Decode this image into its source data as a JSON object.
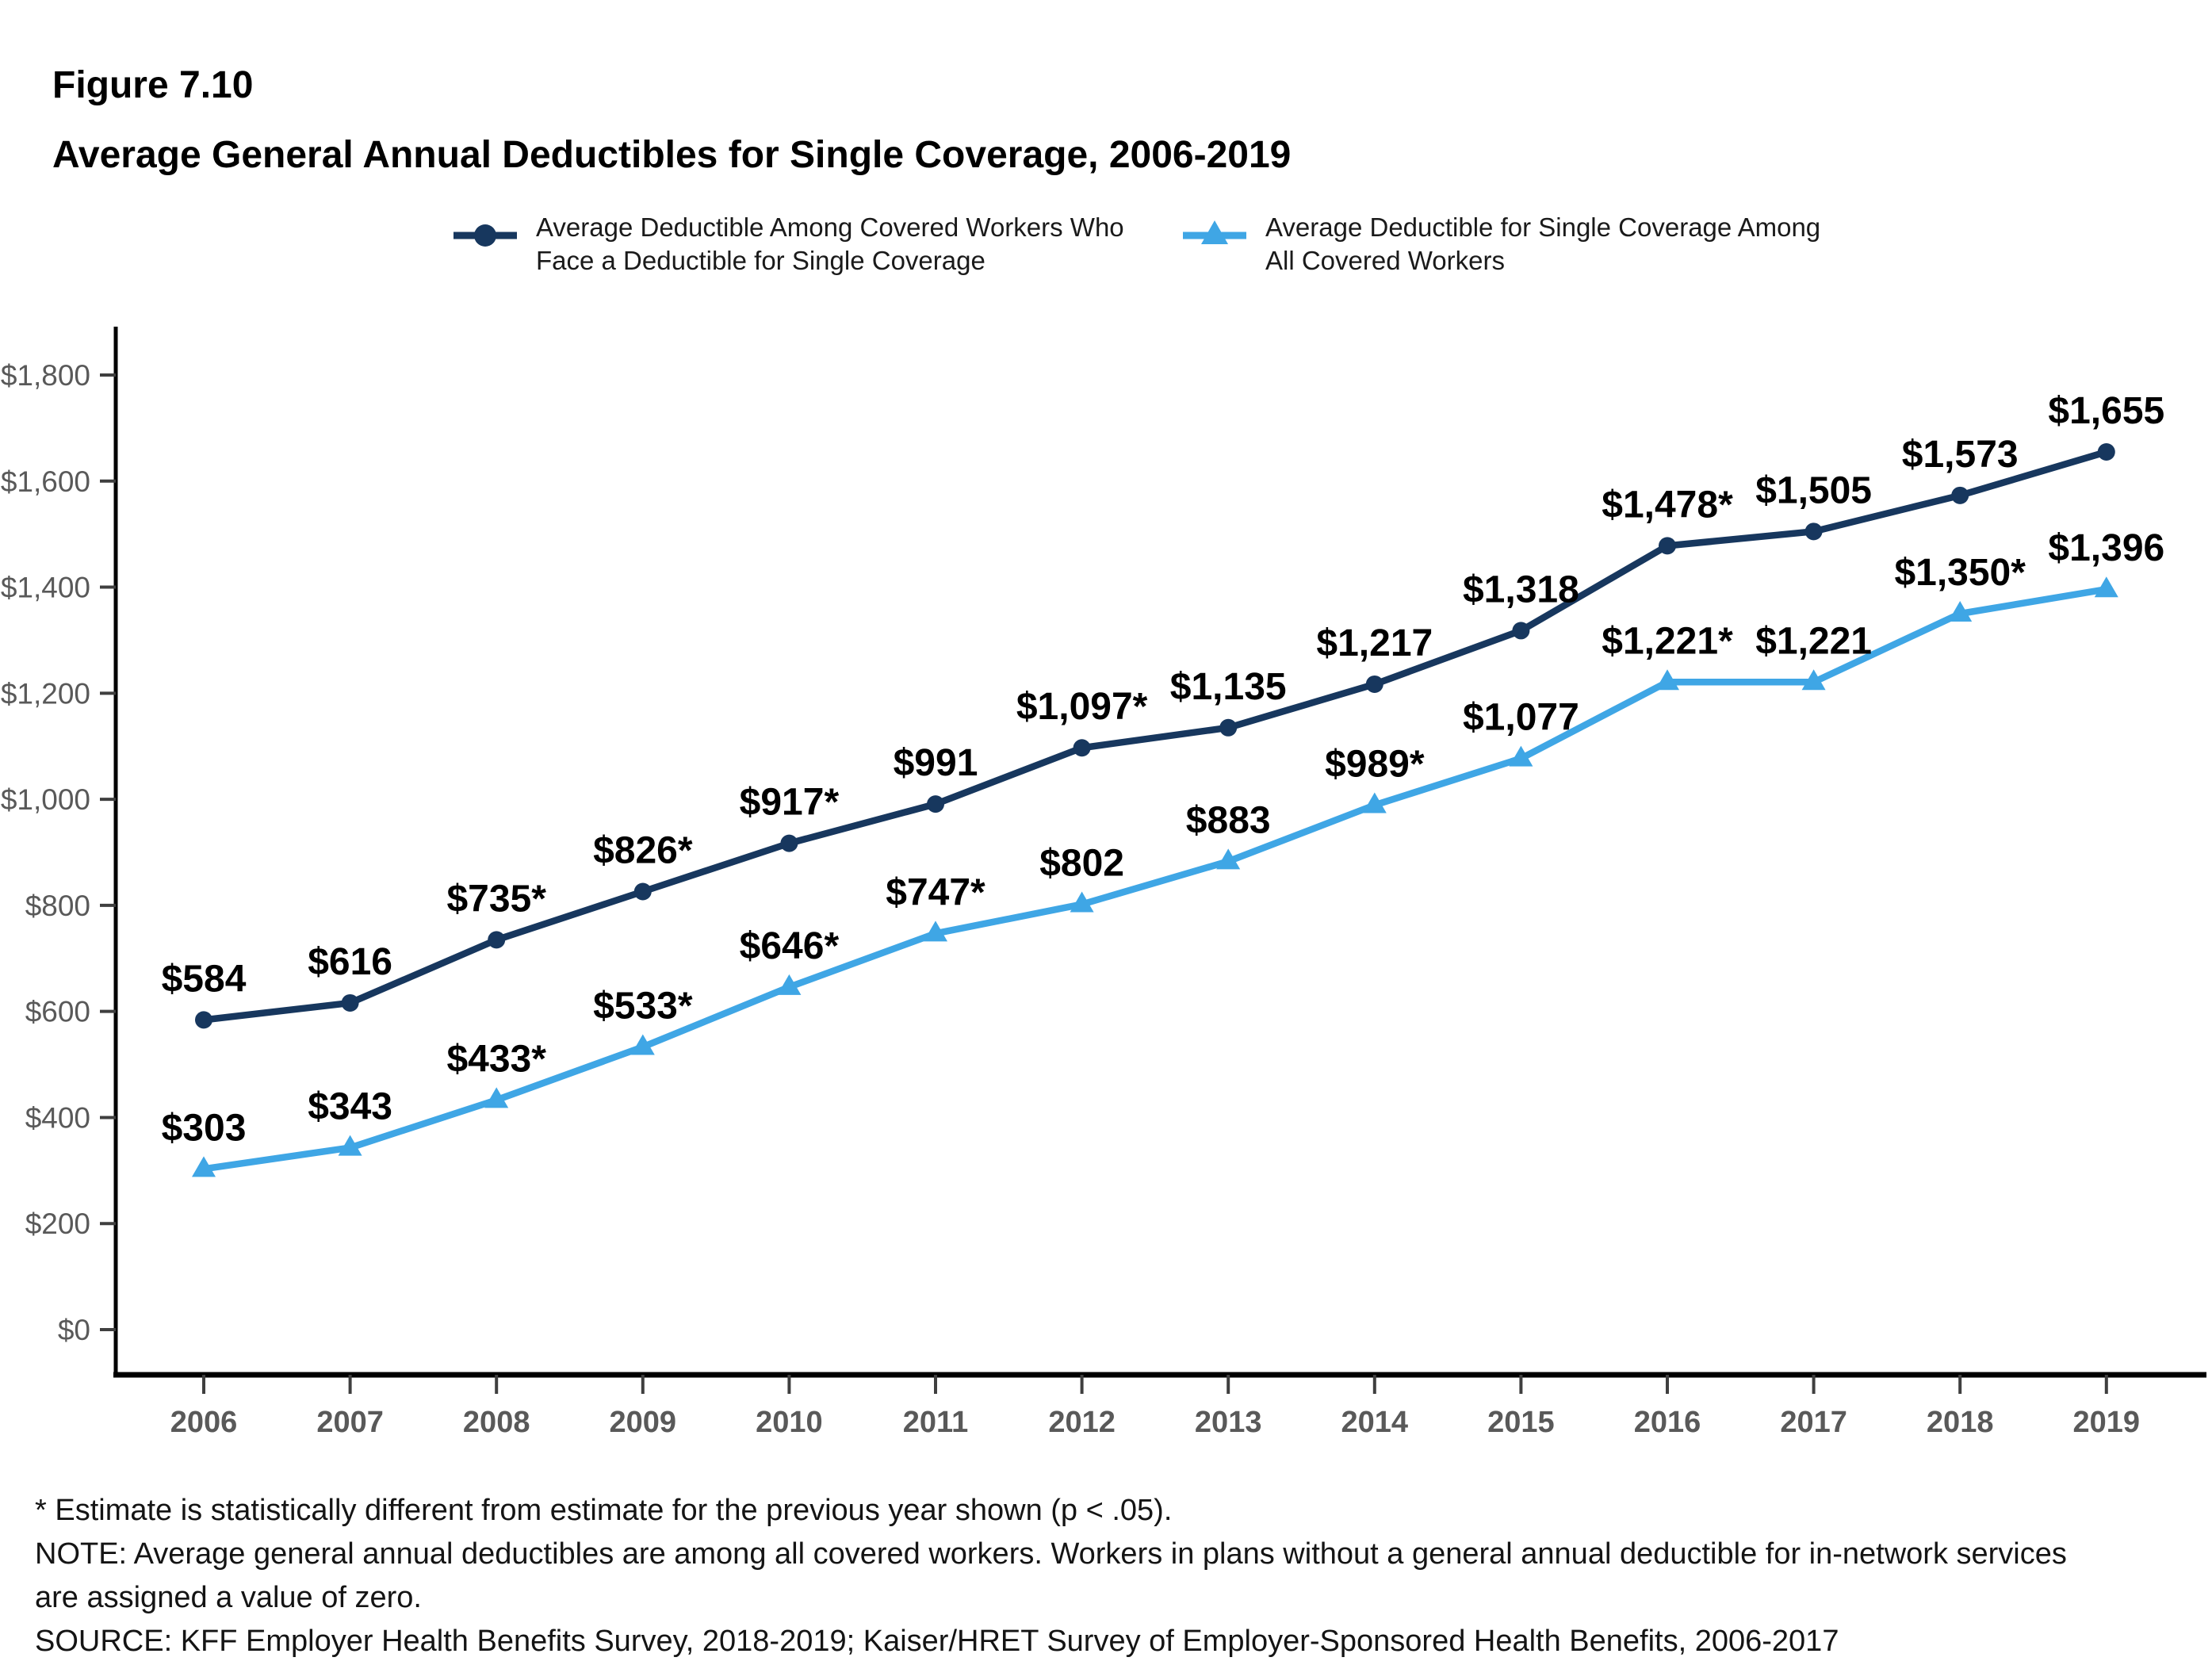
{
  "figure": {
    "number": "Figure 7.10",
    "title": "Average General Annual Deductibles for Single Coverage, 2006-2019"
  },
  "legend": {
    "items": [
      {
        "marker": "circle",
        "color": "#17375E",
        "lines": [
          "Average Deductible Among Covered Workers Who",
          "Face a Deductible for Single Coverage"
        ]
      },
      {
        "marker": "triangle",
        "color": "#3FA6E5",
        "lines": [
          "Average Deductible for Single Coverage Among",
          "All Covered Workers"
        ]
      }
    ]
  },
  "chart_data": {
    "type": "line",
    "x": [
      "2006",
      "2007",
      "2008",
      "2009",
      "2010",
      "2011",
      "2012",
      "2013",
      "2014",
      "2015",
      "2016",
      "2017",
      "2018",
      "2019"
    ],
    "series": [
      {
        "name": "Average Deductible Among Covered Workers Who Face a Deductible for Single Coverage",
        "marker": "circle",
        "color": "#17375E",
        "values": [
          584,
          616,
          735,
          826,
          917,
          991,
          1097,
          1135,
          1217,
          1318,
          1478,
          1505,
          1573,
          1655
        ],
        "point_labels": [
          "$584",
          "$616",
          "$735*",
          "$826*",
          "$917*",
          "$991",
          "$1,097*",
          "$1,135",
          "$1,217",
          "$1,318",
          "$1,478*",
          "$1,505",
          "$1,573",
          "$1,655"
        ]
      },
      {
        "name": "Average Deductible for Single Coverage Among All Covered Workers",
        "marker": "triangle",
        "color": "#3FA6E5",
        "values": [
          303,
          343,
          433,
          533,
          646,
          747,
          802,
          883,
          989,
          1077,
          1221,
          1221,
          1350,
          1396
        ],
        "point_labels": [
          "$303",
          "$343",
          "$433*",
          "$533*",
          "$646*",
          "$747*",
          "$802",
          "$883",
          "$989*",
          "$1,077",
          "$1,221*",
          "$1,221",
          "$1,350*",
          "$1,396"
        ]
      }
    ],
    "ylim": [
      0,
      1800
    ],
    "ytick_step": 200,
    "ytick_labels": [
      "$0",
      "$200",
      "$400",
      "$600",
      "$800",
      "$1,000",
      "$1,200",
      "$1,400",
      "$1,600",
      "$1,800"
    ],
    "xlabel": "",
    "ylabel": "",
    "grid": false,
    "legend_position": "top"
  },
  "colors": {
    "axis": "#000000",
    "tick": "#3f3f3f",
    "tick_label": "#595959",
    "data_label": "#000000"
  },
  "footnotes": {
    "lines": [
      "* Estimate is statistically different from estimate for the previous year shown (p < .05).",
      "NOTE: Average general annual deductibles are among all covered workers. Workers in plans without a general annual deductible for in-network services",
      "are assigned a value of zero.",
      "SOURCE: KFF Employer Health Benefits Survey, 2018-2019; Kaiser/HRET Survey of Employer-Sponsored Health Benefits, 2006-2017"
    ]
  }
}
